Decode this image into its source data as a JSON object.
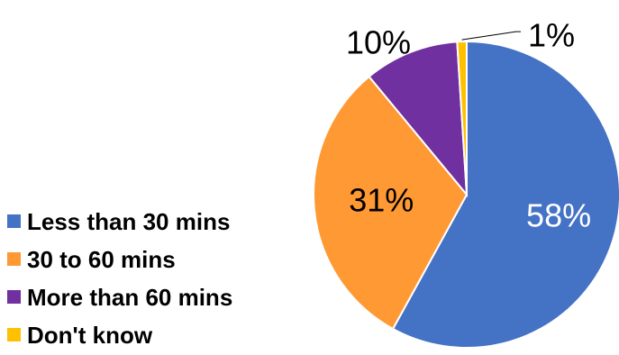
{
  "chart_data": {
    "type": "pie",
    "title": "",
    "legend_position": "left",
    "slices": [
      {
        "label": "Less than 30 mins",
        "value": 58,
        "display": "58%",
        "color": "#4472C4",
        "label_color": "#FFFFFF"
      },
      {
        "label": "30 to 60 mins",
        "value": 31,
        "display": "31%",
        "color": "#FF9933",
        "label_color": "#000000"
      },
      {
        "label": "More than 60 mins",
        "value": 10,
        "display": "10%",
        "color": "#7030A0",
        "label_color": "#000000"
      },
      {
        "label": "Don't know",
        "value": 1,
        "display": "1%",
        "color": "#FFC000",
        "label_color": "#000000"
      }
    ]
  }
}
